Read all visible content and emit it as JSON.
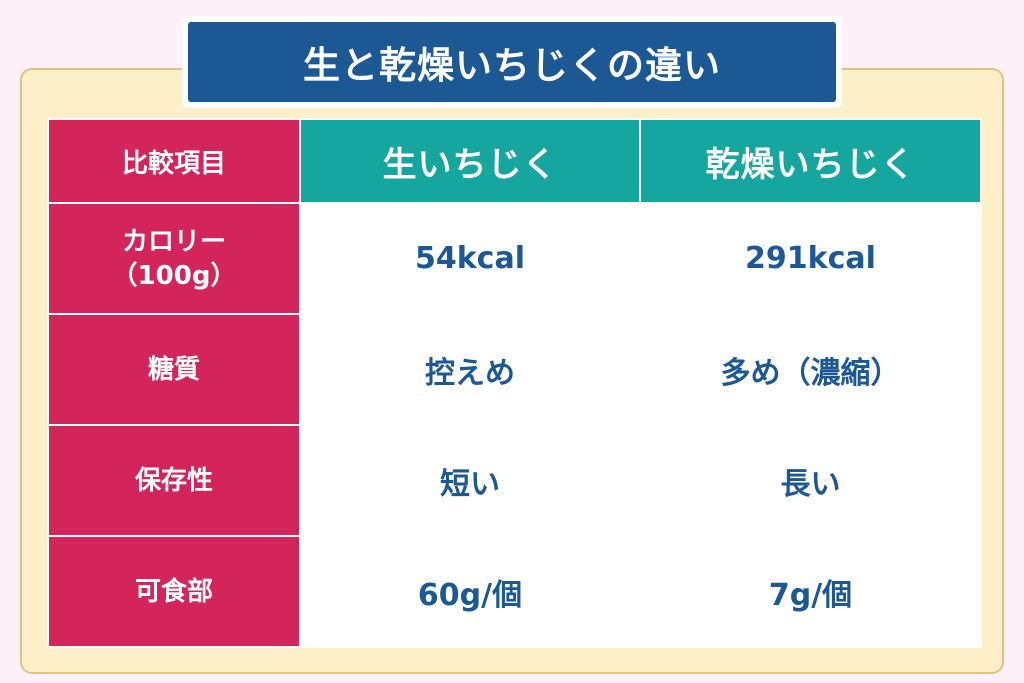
{
  "title": "生と乾燥いちじくの違い",
  "table": {
    "corner": "比較項目",
    "columns": [
      "生いちじく",
      "乾燥いちじく"
    ],
    "rows": [
      {
        "label": "カロリー",
        "sublabel": "（100g）",
        "fresh": "54kcal",
        "dried": "291kcal"
      },
      {
        "label": "糖質",
        "sublabel": "",
        "fresh": "控えめ",
        "dried": "多め（濃縮）"
      },
      {
        "label": "保存性",
        "sublabel": "",
        "fresh": "短い",
        "dried": "長い"
      },
      {
        "label": "可食部",
        "sublabel": "",
        "fresh": "60g/個",
        "dried": "7g/個"
      }
    ]
  },
  "colors": {
    "page_background": "#fdf0f8",
    "card_background": "#fdefc8",
    "card_border": "#dfc37e",
    "title_background": "#1c5894",
    "label_column": "#d3245b",
    "header_teal": "#16a6a0",
    "value_text": "#1c5894"
  }
}
